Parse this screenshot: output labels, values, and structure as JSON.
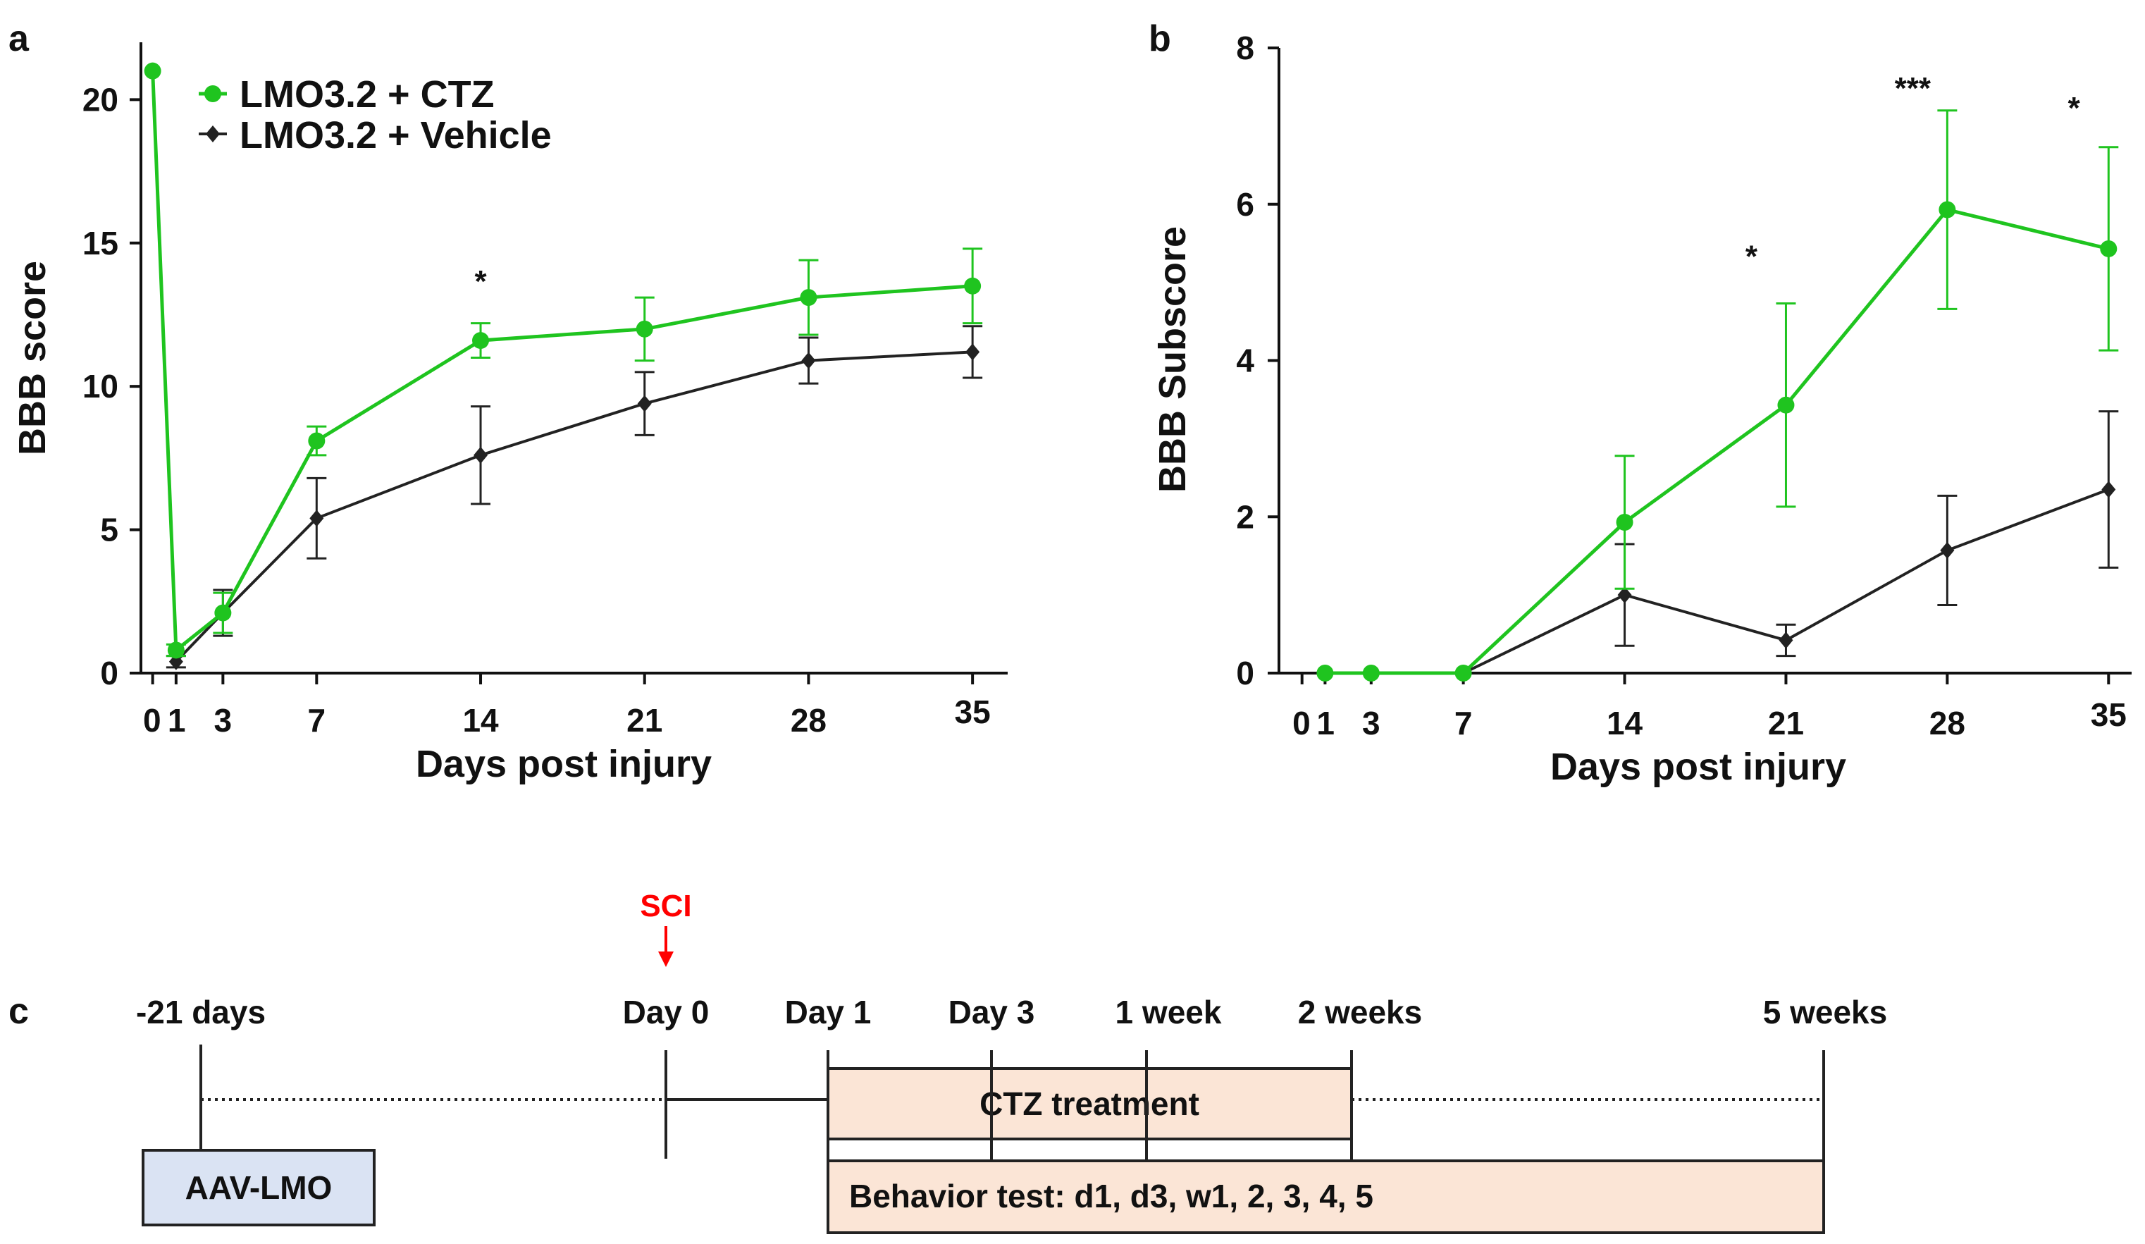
{
  "chart_data": [
    {
      "panel": "a",
      "type": "line",
      "xlabel": "Days post injury",
      "ylabel": "BBB score",
      "xlim": [
        -0.5,
        36.5
      ],
      "ylim": [
        0,
        22
      ],
      "x_ticks": [
        0,
        1,
        3,
        7,
        14,
        21,
        28,
        35
      ],
      "x_tick_labels": [
        "0",
        "1",
        "3",
        "7",
        "14",
        "21",
        "28",
        "35"
      ],
      "y_ticks": [
        0,
        5,
        10,
        15,
        20
      ],
      "y_tick_labels": [
        "0",
        "5",
        "10",
        "15",
        "20"
      ],
      "legend": "top-left",
      "series": [
        {
          "name": "LMO3.2 + CTZ",
          "color": "#1fc41f",
          "marker": "circle",
          "x": [
            0,
            1,
            3,
            7,
            14,
            21,
            28,
            35
          ],
          "values": [
            21,
            0.8,
            2.1,
            8.1,
            11.6,
            12.0,
            13.1,
            13.5
          ],
          "errors": [
            0,
            0.2,
            0.7,
            0.5,
            0.6,
            1.1,
            1.3,
            1.3
          ]
        },
        {
          "name": "LMO3.2 + Vehicle",
          "color": "#222222",
          "marker": "diamond",
          "x": [
            1,
            3,
            7,
            14,
            21,
            28,
            35
          ],
          "values": [
            0.4,
            2.1,
            5.4,
            7.6,
            9.4,
            10.9,
            11.2
          ],
          "errors": [
            0.2,
            0.8,
            1.4,
            1.7,
            1.1,
            0.8,
            0.9
          ]
        }
      ],
      "annotations": [
        {
          "text": "*",
          "x": 14,
          "y": 13.3
        }
      ]
    },
    {
      "panel": "b",
      "type": "line",
      "xlabel": "Days post injury",
      "ylabel": "BBB Subscore",
      "xlim": [
        -1,
        36
      ],
      "ylim": [
        0,
        8
      ],
      "x_ticks": [
        0,
        1,
        3,
        7,
        14,
        21,
        28,
        35
      ],
      "x_tick_labels": [
        "0",
        "1",
        "3",
        "7",
        "14",
        "21",
        "28",
        "35"
      ],
      "y_ticks": [
        0,
        2,
        4,
        6,
        8
      ],
      "y_tick_labels": [
        "0",
        "2",
        "4",
        "6",
        "8"
      ],
      "series": [
        {
          "name": "LMO3.2 + CTZ",
          "color": "#1fc41f",
          "marker": "circle",
          "x": [
            1,
            3,
            7,
            14,
            21,
            28,
            35
          ],
          "values": [
            0,
            0,
            0,
            1.93,
            3.43,
            5.93,
            5.43
          ],
          "errors": [
            0,
            0,
            0,
            0.85,
            1.3,
            1.27,
            1.3
          ]
        },
        {
          "name": "LMO3.2 + Vehicle",
          "color": "#222222",
          "marker": "diamond",
          "x": [
            1,
            3,
            7,
            14,
            21,
            28,
            35
          ],
          "values": [
            0,
            0,
            0,
            1.0,
            0.42,
            1.57,
            2.35
          ],
          "errors": [
            0,
            0,
            0,
            0.65,
            0.2,
            0.7,
            1.0
          ]
        }
      ],
      "annotations": [
        {
          "text": "*",
          "x": 19.5,
          "y": 5.2
        },
        {
          "text": "***",
          "x": 26.5,
          "y": 7.35
        },
        {
          "text": "*",
          "x": 33.5,
          "y": 7.1
        }
      ]
    }
  ],
  "panels": {
    "a_label": "a",
    "b_label": "b",
    "c_label": "c"
  },
  "timeline": {
    "sci_label": "SCI",
    "milestones": [
      "-21 days",
      "Day 0",
      "Day 1",
      "Day 3",
      "1 week",
      "2 weeks",
      "5 weeks"
    ],
    "aav_label": "AAV-LMO",
    "ctz_label": "CTZ treatment",
    "behavior_label": "Behavior test: d1, d3, w1, 2, 3, 4, 5",
    "colors": {
      "aav_fill": "#dae3f3",
      "box_fill": "#fbe5d6",
      "arrow": "#ff0000"
    }
  }
}
